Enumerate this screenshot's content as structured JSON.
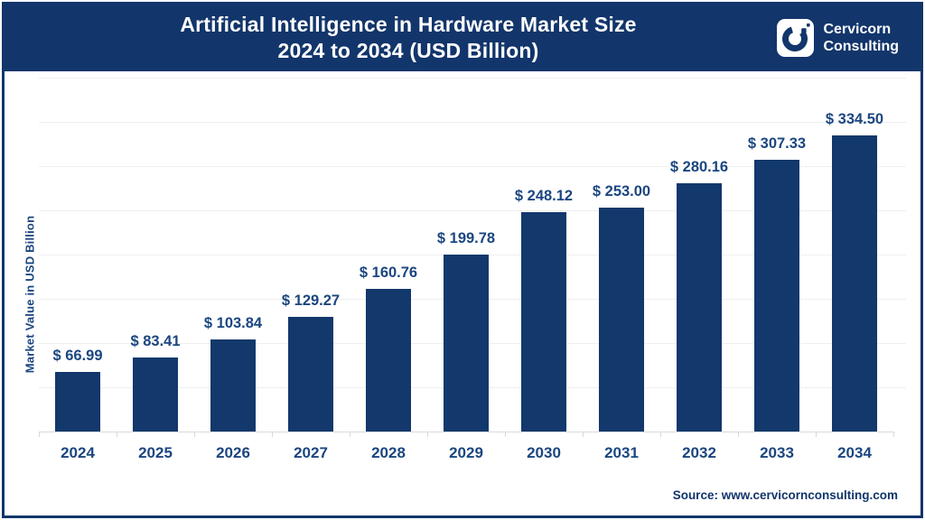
{
  "header": {
    "title_line1": "Artificial Intelligence in Hardware Market Size",
    "title_line2": "2024 to 2034 (USD Billion)",
    "logo": {
      "name_line1": "Cervicorn",
      "name_line2": "Consulting"
    }
  },
  "chart_data": {
    "type": "bar",
    "title": "Artificial Intelligence in Hardware Market Size 2024 to 2034 (USD Billion)",
    "categories": [
      "2024",
      "2025",
      "2026",
      "2027",
      "2028",
      "2029",
      "2030",
      "2031",
      "2032",
      "2033",
      "2034"
    ],
    "values": [
      66.99,
      83.41,
      103.84,
      129.27,
      160.76,
      199.78,
      248.12,
      253.0,
      280.16,
      307.33,
      334.5
    ],
    "value_labels": [
      "$ 66.99",
      "$ 83.41",
      "$ 103.84",
      "$ 129.27",
      "$ 160.76",
      "$ 199.78",
      "$ 248.12",
      "$ 253.00",
      "$ 280.16",
      "$ 307.33",
      "$ 334.50"
    ],
    "xlabel": "",
    "ylabel": "Market Value in USD Billion",
    "ylim": [
      0,
      400
    ],
    "gridline_step": 50,
    "grid": true,
    "legend": "none",
    "bar_color": "#12386C"
  },
  "source": {
    "text": "Source: www.cervicornconsulting.com"
  },
  "colors": {
    "header_bg": "#12356B",
    "frame_border": "#12356B",
    "bar": "#12386C",
    "label_text": "#1B4680",
    "title_text": "#FFFFFF",
    "gridline": "#EFEFEF",
    "axis_line": "#D9D9D9",
    "background": "#FFFFFF"
  }
}
